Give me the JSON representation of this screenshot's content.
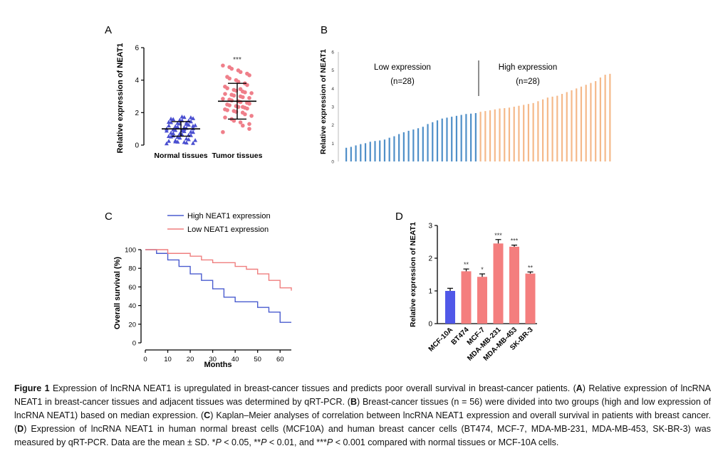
{
  "panels": {
    "A": {
      "letter": "A",
      "chart_data": {
        "type": "scatter",
        "ylabel": "Relative expression of NEAT1",
        "ylim": [
          0,
          6
        ],
        "yticks": [
          "0",
          "2",
          "4",
          "6"
        ],
        "categories": [
          "Normal tissues",
          "Tumor tissues"
        ],
        "groups": [
          {
            "name": "Normal tissues",
            "marker": "triangle",
            "color": "#4a4fd0",
            "mean": 1.0,
            "sd": 0.45,
            "values": [
              0.1,
              0.12,
              0.15,
              0.18,
              0.2,
              0.22,
              0.25,
              0.3,
              0.35,
              0.4,
              0.45,
              0.5,
              0.52,
              0.55,
              0.6,
              0.62,
              0.65,
              0.7,
              0.72,
              0.75,
              0.8,
              0.82,
              0.85,
              0.9,
              0.92,
              0.95,
              1.0,
              1.02,
              1.05,
              1.1,
              1.12,
              1.15,
              1.2,
              1.22,
              1.25,
              1.3,
              1.32,
              1.35,
              1.4,
              1.42,
              1.45,
              1.5,
              1.52,
              1.55,
              1.6,
              1.62,
              1.65,
              1.7,
              1.72,
              1.75,
              0.28,
              0.58,
              0.88,
              1.18,
              1.38,
              0.98
            ]
          },
          {
            "name": "Tumor tissues",
            "marker": "circle",
            "color": "#ef7f8a",
            "mean": 2.7,
            "sd": 1.1,
            "values": [
              0.8,
              1.0,
              1.2,
              1.4,
              1.5,
              1.6,
              1.7,
              1.8,
              1.9,
              2.0,
              2.05,
              2.1,
              2.15,
              2.2,
              2.25,
              2.3,
              2.35,
              2.4,
              2.45,
              2.5,
              2.55,
              2.6,
              2.65,
              2.7,
              2.75,
              2.8,
              2.85,
              2.9,
              2.95,
              3.0,
              3.05,
              3.1,
              3.15,
              3.2,
              3.25,
              3.3,
              3.35,
              3.4,
              3.5,
              3.6,
              3.7,
              3.8,
              3.9,
              4.0,
              4.1,
              4.2,
              4.3,
              4.4,
              4.5,
              4.6,
              4.7,
              4.8,
              4.9,
              1.3,
              2.35,
              3.45
            ]
          }
        ],
        "annotation": "***"
      }
    },
    "B": {
      "letter": "B",
      "chart_data": {
        "type": "bar",
        "ylabel": "Relative expression of NEAT1",
        "ylim": [
          0,
          6
        ],
        "yticks": [
          "0",
          "1",
          "2",
          "3",
          "4",
          "5",
          "6"
        ],
        "series": [
          {
            "name": "Low expression",
            "n_label": "(n=28)",
            "color": "#4f8fc8",
            "values": [
              0.75,
              0.8,
              0.88,
              0.95,
              1.0,
              1.08,
              1.12,
              1.15,
              1.2,
              1.3,
              1.38,
              1.5,
              1.6,
              1.68,
              1.75,
              1.82,
              1.9,
              2.05,
              2.15,
              2.25,
              2.35,
              2.4,
              2.45,
              2.5,
              2.55,
              2.6,
              2.62,
              2.65
            ]
          },
          {
            "name": "High expression",
            "n_label": "(n=28)",
            "color": "#f5b98a",
            "values": [
              2.72,
              2.76,
              2.8,
              2.85,
              2.9,
              2.92,
              2.95,
              3.0,
              3.05,
              3.1,
              3.15,
              3.2,
              3.3,
              3.4,
              3.5,
              3.55,
              3.6,
              3.7,
              3.8,
              3.9,
              4.0,
              4.1,
              4.2,
              4.3,
              4.4,
              4.6,
              4.75,
              4.8
            ]
          }
        ]
      }
    },
    "C": {
      "letter": "C",
      "chart_data": {
        "type": "line",
        "xlabel": "Months",
        "ylabel": "Overall survival (%)",
        "xlim": [
          0,
          65
        ],
        "ylim": [
          0,
          100
        ],
        "xticks": [
          "0",
          "10",
          "20",
          "30",
          "40",
          "50",
          "60"
        ],
        "yticks": [
          "0",
          "20",
          "40",
          "60",
          "80",
          "100"
        ],
        "series": [
          {
            "name": "High NEAT1 expression",
            "color": "#4a5ccf",
            "x": [
              0,
              5,
              10,
              15,
              20,
              25,
              30,
              35,
              40,
              45,
              50,
              55,
              60,
              65
            ],
            "y": [
              100,
              96,
              89,
              82,
              74,
              67,
              58,
              49,
              44,
              44,
              38,
              33,
              22,
              22
            ]
          },
          {
            "name": "Low NEAT1 expression",
            "color": "#ef7f7f",
            "x": [
              0,
              10,
              20,
              25,
              30,
              40,
              45,
              50,
              55,
              60,
              65
            ],
            "y": [
              100,
              96,
              93,
              89,
              86,
              82,
              79,
              74,
              67,
              59,
              56
            ]
          }
        ]
      }
    },
    "D": {
      "letter": "D",
      "chart_data": {
        "type": "bar",
        "ylabel": "Relative expression of NEAT1",
        "ylim": [
          0,
          3
        ],
        "yticks": [
          "0",
          "1",
          "2",
          "3"
        ],
        "categories": [
          "MCF-10A",
          "BT474",
          "MCF-7",
          "MDA-MB-231",
          "MDA-MB-453",
          "SK-BR-3"
        ],
        "values": [
          1.0,
          1.6,
          1.43,
          2.45,
          2.35,
          1.53
        ],
        "errors": [
          0.08,
          0.07,
          0.09,
          0.12,
          0.05,
          0.05
        ],
        "significance": [
          "",
          "**",
          "*",
          "***",
          "***",
          "**"
        ],
        "colors": [
          "#5058e8",
          "#f47e7e",
          "#f47e7e",
          "#f47e7e",
          "#f47e7e",
          "#f47e7e"
        ]
      }
    }
  },
  "caption": {
    "figure_label": "Figure 1",
    "intro": " Expression of lncRNA NEAT1 is upregulated in breast-cancer tissues and predicts poor overall survival in breast-cancer patients. (",
    "a_letter": "A",
    "a_text": ") Relative expression of lncRNA NEAT1 in breast-cancer tissues and adjacent tissues was determined by qRT-PCR. (",
    "b_letter": "B",
    "b_text": ") Breast-cancer tissues (n = 56) were divided into two groups (high and low expression of lncRNA NEAT1) based on median expression. (",
    "c_letter": "C",
    "c_text": ") Kaplan–Meier analyses of correlation between lncRNA NEAT1 expression and overall survival in patients with breast cancer. (",
    "d_letter": "D",
    "d_text": ") Expression of lncRNA NEAT1 in human normal breast cells (MCF10A) and human breast cancer cells (BT474, MCF-7, MDA-MB-231, MDA-MB-453, SK-BR-3) was measured by qRT-PCR. Data are the mean ± SD. ",
    "p1_stars": "*",
    "p1_p": "P",
    "p1_text": " < 0.05, ",
    "p2_stars": "**",
    "p2_p": "P",
    "p2_text": " < 0.01, and ",
    "p3_stars": "***",
    "p3_p": "P",
    "p3_text": " < 0.001 compared with normal tissues or MCF-10A cells."
  }
}
